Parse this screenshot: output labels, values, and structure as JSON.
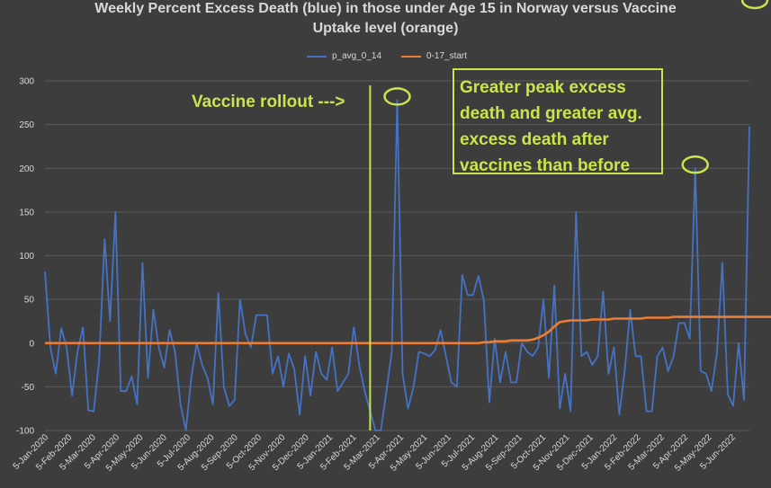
{
  "chart_data": {
    "type": "line",
    "title_lines": [
      "Weekly Percent Excess Death (blue) in those under Age 15 in Norway versus Vaccine",
      "Uptake level (orange)"
    ],
    "xlabel": "",
    "ylabel": "",
    "ylim": [
      -100,
      300
    ],
    "yticks": [
      -100,
      -50,
      0,
      50,
      100,
      150,
      200,
      250,
      300
    ],
    "grid": true,
    "legend_position": "top",
    "x_tick_labels": [
      "5-Jan-2020",
      "5-Feb-2020",
      "5-Mar-2020",
      "5-Apr-2020",
      "5-May-2020",
      "5-Jun-2020",
      "5-Jul-2020",
      "5-Aug-2020",
      "5-Sep-2020",
      "5-Oct-2020",
      "5-Nov-2020",
      "5-Dec-2020",
      "5-Jan-2021",
      "5-Feb-2021",
      "5-Mar-2021",
      "5-Apr-2021",
      "5-May-2021",
      "5-Jun-2021",
      "5-Jul-2021",
      "5-Aug-2021",
      "5-Sep-2021",
      "5-Oct-2021",
      "5-Nov-2021",
      "5-Dec-2021",
      "5-Jan-2022",
      "5-Feb-2022",
      "5-Mar-2022",
      "5-Apr-2022",
      "5-May-2022",
      "5-Jun-2022"
    ],
    "series": [
      {
        "name": "p_avg_0_14",
        "color": "#4472c4",
        "values": [
          82,
          -5,
          -35,
          17,
          -5,
          -60,
          -10,
          18,
          -77,
          -78,
          -20,
          119,
          25,
          150,
          -55,
          -55,
          -38,
          -70,
          92,
          -40,
          38,
          -5,
          -28,
          15,
          -10,
          -70,
          -100,
          -40,
          0,
          -25,
          -40,
          -70,
          57,
          -50,
          -72,
          -65,
          50,
          10,
          -5,
          32,
          32,
          32,
          -35,
          -15,
          -50,
          -12,
          -30,
          -82,
          -15,
          -60,
          -10,
          -35,
          -42,
          -5,
          -55,
          -45,
          -35,
          18,
          -25,
          -55,
          -78,
          -100,
          -100,
          -55,
          -10,
          278,
          -35,
          -75,
          -50,
          -10,
          -12,
          -15,
          -8,
          15,
          -15,
          -45,
          -50,
          78,
          55,
          55,
          77,
          48,
          -68,
          5,
          -45,
          -10,
          -45,
          -45,
          0,
          -10,
          -15,
          -5,
          50,
          -40,
          66,
          -75,
          -35,
          -78,
          150,
          -15,
          -10,
          -25,
          -15,
          59,
          -35,
          -5,
          -82,
          -30,
          38,
          -15,
          -15,
          -78,
          -78,
          -15,
          -5,
          -32,
          -15,
          23,
          23,
          5,
          200,
          -32,
          -35,
          -55,
          -12,
          92,
          -58,
          -72,
          0,
          -65,
          248
        ]
      },
      {
        "name": "0-17_start",
        "color": "#ed7d31",
        "values": [
          0,
          0,
          0,
          0,
          0,
          0,
          0,
          0,
          0,
          0,
          0,
          0,
          0,
          0,
          0,
          0,
          0,
          0,
          0,
          0,
          0,
          0,
          0,
          0,
          0,
          0,
          0,
          0,
          0,
          0,
          0,
          0,
          0,
          0,
          0,
          0,
          0,
          0,
          0,
          0,
          0,
          0,
          0,
          0,
          0,
          0,
          0,
          0,
          0,
          0,
          0,
          0,
          0,
          0,
          0,
          0,
          0,
          0,
          0,
          0,
          0,
          0,
          0,
          0,
          0,
          0,
          0,
          0,
          0,
          0,
          0,
          0,
          0,
          0,
          0,
          0,
          0,
          0,
          0,
          0,
          0,
          1,
          1,
          2,
          2,
          2,
          3,
          3,
          3,
          3,
          4,
          6,
          9,
          13,
          19,
          24,
          25,
          26,
          26,
          26,
          26,
          27,
          27,
          27,
          27,
          28,
          28,
          28,
          28,
          28,
          28,
          29,
          29,
          29,
          29,
          29,
          30,
          30,
          30,
          30,
          30,
          30,
          30,
          30,
          30,
          30,
          30,
          30,
          30,
          30,
          30,
          30,
          30,
          30,
          30,
          30
        ]
      }
    ],
    "annotations": {
      "rollout_label": "Vaccine rollout --->",
      "rollout_x_index": 60,
      "callout_lines": [
        "Greater peak excess",
        "death and greater avg.",
        "excess death after",
        "vaccines than before"
      ],
      "circled_peaks_index": [
        65,
        120,
        131
      ]
    }
  },
  "colors": {
    "background": "#3d3d3d",
    "grid": "#5a5a5a",
    "annotation": "#c8e64b"
  }
}
